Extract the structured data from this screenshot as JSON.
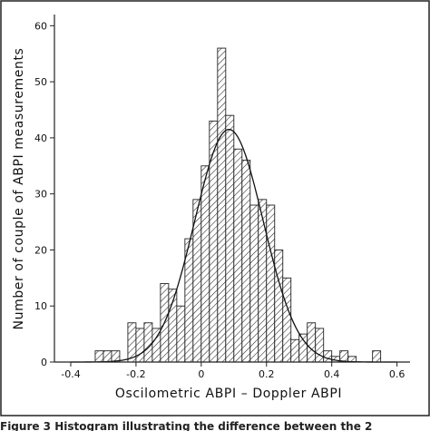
{
  "chart_data": {
    "type": "bar",
    "xlabel": "Oscilometric ABPI – Doppler ABPI",
    "ylabel": "Number of couple of ABPI measurements",
    "xlim": [
      -0.45,
      0.64
    ],
    "ylim": [
      0,
      62
    ],
    "x_ticks": [
      -0.4,
      -0.2,
      0,
      0.2,
      0.4,
      0.6
    ],
    "x_tick_labels": [
      "-0.4",
      "-0.2",
      "0",
      "0.2",
      "0.4",
      "0.6"
    ],
    "y_ticks": [
      0,
      10,
      20,
      30,
      40,
      50,
      60
    ],
    "bin_width": 0.025,
    "bins": [
      {
        "start": -0.325,
        "count": 2
      },
      {
        "start": -0.3,
        "count": 2
      },
      {
        "start": -0.275,
        "count": 2
      },
      {
        "start": -0.25,
        "count": 0
      },
      {
        "start": -0.225,
        "count": 7
      },
      {
        "start": -0.2,
        "count": 6
      },
      {
        "start": -0.175,
        "count": 7
      },
      {
        "start": -0.15,
        "count": 6
      },
      {
        "start": -0.125,
        "count": 14
      },
      {
        "start": -0.1,
        "count": 13
      },
      {
        "start": -0.075,
        "count": 10
      },
      {
        "start": -0.05,
        "count": 22
      },
      {
        "start": -0.025,
        "count": 29
      },
      {
        "start": 0.0,
        "count": 35
      },
      {
        "start": 0.025,
        "count": 43
      },
      {
        "start": 0.05,
        "count": 56
      },
      {
        "start": 0.075,
        "count": 44
      },
      {
        "start": 0.1,
        "count": 38
      },
      {
        "start": 0.125,
        "count": 36
      },
      {
        "start": 0.15,
        "count": 28
      },
      {
        "start": 0.175,
        "count": 29
      },
      {
        "start": 0.2,
        "count": 28
      },
      {
        "start": 0.225,
        "count": 20
      },
      {
        "start": 0.25,
        "count": 15
      },
      {
        "start": 0.275,
        "count": 4
      },
      {
        "start": 0.3,
        "count": 5
      },
      {
        "start": 0.325,
        "count": 7
      },
      {
        "start": 0.35,
        "count": 6
      },
      {
        "start": 0.375,
        "count": 2
      },
      {
        "start": 0.4,
        "count": 1
      },
      {
        "start": 0.425,
        "count": 2
      },
      {
        "start": 0.45,
        "count": 1
      },
      {
        "start": 0.475,
        "count": 0
      },
      {
        "start": 0.5,
        "count": 0
      },
      {
        "start": 0.525,
        "count": 2
      }
    ],
    "normal_curve": {
      "mean": 0.085,
      "sd": 0.105,
      "peak": 41.5
    }
  },
  "caption_fragment": "Figure 3 Histogram illustrating the difference between the 2"
}
